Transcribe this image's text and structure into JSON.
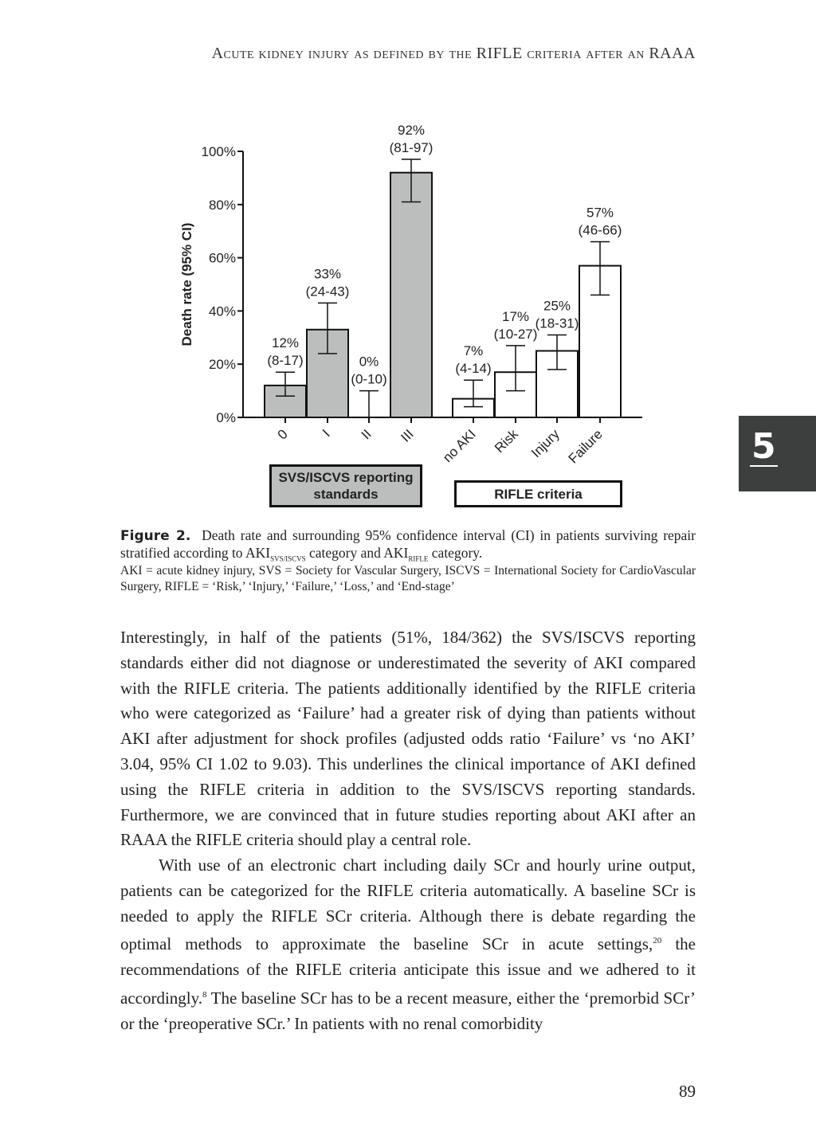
{
  "header": {
    "running_title": "Acute kidney injury as defined by the RIFLE criteria after an RAAA"
  },
  "chapter_tab": "5",
  "chart_data": {
    "type": "bar",
    "y_label": "Death rate (95% CI)",
    "categories": [
      "0",
      "I",
      "II",
      "III",
      "no AKI",
      "Risk",
      "Injury",
      "Failure"
    ],
    "ylim": [
      0,
      100
    ],
    "yticks": [
      {
        "value": 0,
        "label": "0%"
      },
      {
        "value": 20,
        "label": "20%"
      },
      {
        "value": 40,
        "label": "40%"
      },
      {
        "value": 60,
        "label": "60%"
      },
      {
        "value": 80,
        "label": "80%"
      },
      {
        "value": 100,
        "label": "100%"
      }
    ],
    "series": [
      {
        "name": "SVS/ISCVS reporting standards",
        "color": "#bcbebd",
        "values": [
          12,
          33,
          0,
          92,
          null,
          null,
          null,
          null
        ],
        "value_labels": [
          "12%",
          "33%",
          "0%",
          "92%",
          null,
          null,
          null,
          null
        ],
        "ci_low": [
          8,
          24,
          0,
          81,
          null,
          null,
          null,
          null
        ],
        "ci_high": [
          17,
          43,
          10,
          97,
          null,
          null,
          null,
          null
        ],
        "ci_labels": [
          "(8-17)",
          "(24-43)",
          "(0-10)",
          "(81-97)",
          null,
          null,
          null,
          null
        ]
      },
      {
        "name": "RIFLE criteria",
        "color": "#ffffff",
        "values": [
          null,
          null,
          null,
          null,
          7,
          17,
          25,
          57
        ],
        "value_labels": [
          null,
          null,
          null,
          null,
          "7%",
          "17%",
          "25%",
          "57%"
        ],
        "ci_low": [
          null,
          null,
          null,
          null,
          4,
          10,
          18,
          46
        ],
        "ci_high": [
          null,
          null,
          null,
          null,
          14,
          27,
          31,
          66
        ],
        "ci_labels": [
          null,
          null,
          null,
          null,
          "(4-14)",
          "(10-27)",
          "(18-31)",
          "(46-66)"
        ]
      }
    ]
  },
  "caption": {
    "label": "Figure 2.",
    "text_a": "Death rate and surrounding 95% confidence interval (CI) in patients surviving repair stratified according to AKI",
    "sub_a": "SVS/ISCVS",
    "text_b": " category and AKI",
    "sub_b": "RIFLE",
    "text_c": " category.",
    "note": "AKI = acute kidney injury, SVS = Society for Vascular Surgery, ISCVS = International Society for CardioVascular Surgery, RIFLE = ‘Risk,’ ‘Injury,’ ‘Failure,’ ‘Loss,’ and ‘End-stage’"
  },
  "body": {
    "paragraph_1": "Interestingly, in half of the patients (51%, 184/362) the SVS/ISCVS reporting standards either did not diagnose or underestimated the severity of AKI compared with the RIFLE criteria. The patients additionally identified by the RIFLE criteria who were categorized as ‘Failure’ had a greater risk of dying than patients without AKI after adjustment for shock profiles (adjusted odds ratio ‘Failure’ vs ‘no AKI’ 3.04, 95% CI 1.02 to 9.03). This underlines the clinical importance of AKI defined using the RIFLE criteria in addition to the SVS/ISCVS reporting standards. Furthermore, we are convinced that in future studies reporting about AKI after an RAAA the RIFLE criteria should play a central role.",
    "paragraph_2_a": "With use of an electronic chart including daily SCr and hourly urine output, patients can be categorized for the RIFLE criteria automatically. A baseline SCr is needed to apply the RIFLE SCr criteria. Although there is debate regarding the optimal methods to approximate the baseline SCr in acute settings,",
    "ref_a": "20",
    "paragraph_2_b": " the recommendations of the RIFLE criteria anticipate this issue and we adhered to it accordingly.",
    "ref_b": "8",
    "paragraph_2_c": " The baseline SCr has to be a recent measure, either the ‘premorbid SCr’ or the ‘preoperative SCr.’ In patients with no renal comorbidity"
  },
  "page_number": "89"
}
